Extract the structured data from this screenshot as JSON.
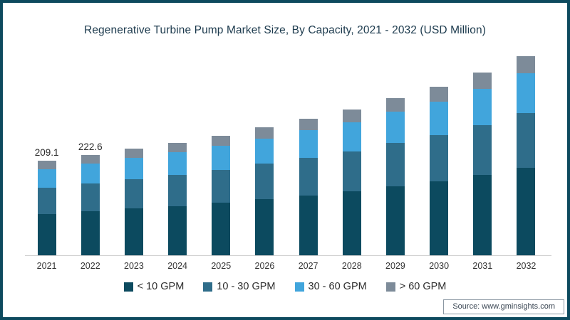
{
  "page": {
    "title": "Regenerative Turbine Pump Market Size, By Capacity, 2021 - 2032 (USD Million)",
    "source": "Source: www.gminsights.com",
    "border_color": "#0d4a5e",
    "background_color": "#ffffff"
  },
  "chart_data": {
    "type": "bar",
    "stacked": true,
    "title": "Regenerative Turbine Pump Market Size, By Capacity, 2021 - 2032 (USD Million)",
    "unit": "USD Million",
    "xlabel": "",
    "ylabel": "",
    "grid": false,
    "legend_position": "bottom",
    "ylim": [
      0,
      460
    ],
    "categories": [
      "2021",
      "2022",
      "2023",
      "2024",
      "2025",
      "2026",
      "2027",
      "2028",
      "2029",
      "2030",
      "2031",
      "2032"
    ],
    "series": [
      {
        "name": "< 10 GPM",
        "color": "#0c4a5f",
        "values": [
          91.7,
          97.7,
          103.5,
          109.2,
          116.1,
          124.2,
          132.7,
          141.5,
          152.5,
          163.3,
          177.1,
          193.2
        ]
      },
      {
        "name": "10 - 30 GPM",
        "color": "#2f6d8a",
        "values": [
          57.7,
          61.5,
          65.1,
          68.7,
          73.0,
          78.1,
          83.4,
          88.9,
          95.8,
          102.6,
          111.3,
          121.4
        ]
      },
      {
        "name": "30 - 60 GPM",
        "color": "#41a5dc",
        "values": [
          41.5,
          44.2,
          46.9,
          49.5,
          52.6,
          56.3,
          60.1,
          64.1,
          69.1,
          74.0,
          80.3,
          87.5
        ]
      },
      {
        "name": "> 60 GPM",
        "color": "#7d8b99",
        "values": [
          18.2,
          19.2,
          20.3,
          21.4,
          22.8,
          24.4,
          26.1,
          27.8,
          30.0,
          32.2,
          34.8,
          38.0
        ]
      }
    ],
    "totals": [
      209.1,
      222.6,
      235.8,
      248.8,
      264.5,
      283.0,
      302.3,
      322.3,
      347.4,
      372.1,
      403.5,
      440.1
    ],
    "data_labels": {
      "2021": "209.1",
      "2022": "222.6"
    }
  }
}
